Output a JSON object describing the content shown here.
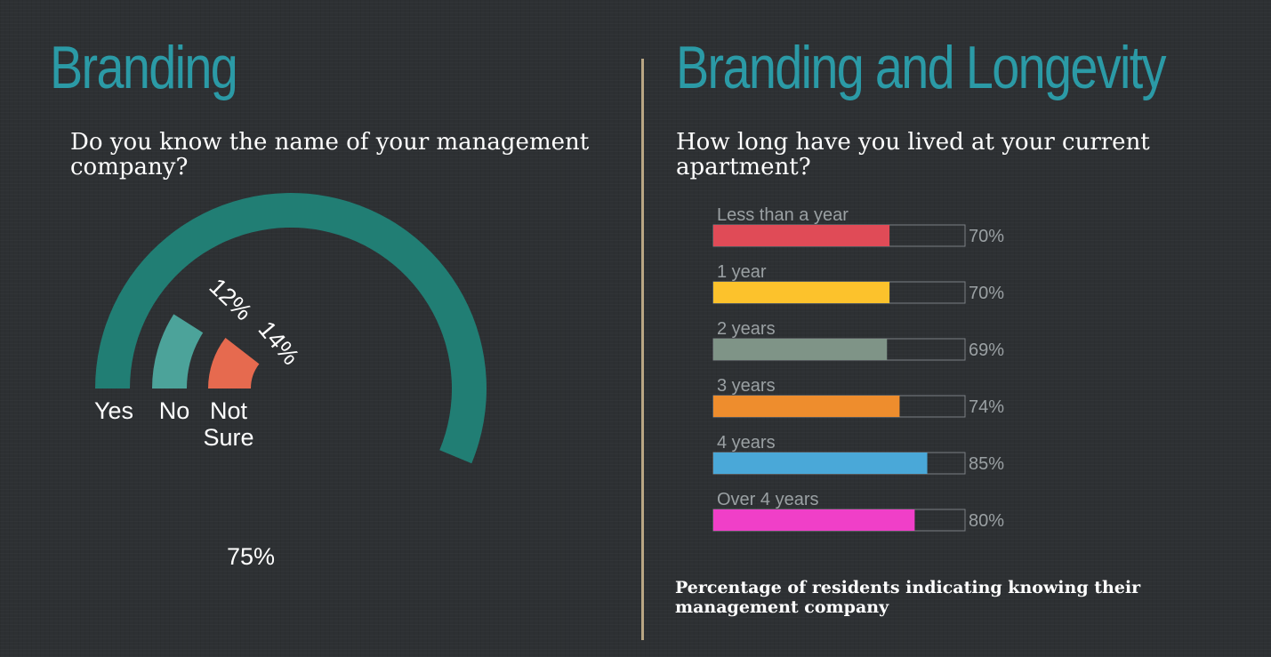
{
  "left_panel": {
    "title": "Branding",
    "question": "Do you know the name of your management company?"
  },
  "right_panel": {
    "title": "Branding and Longevity",
    "question": "How long have you lived at your current apartment?",
    "footnote": "Percentage of residents indicating knowing their management company"
  },
  "chart_data": [
    {
      "type": "radial-bar",
      "categories": [
        "Yes",
        "No",
        "Not Sure"
      ],
      "category_labels": [
        "Yes",
        "No",
        "Not\nSure"
      ],
      "values": [
        75,
        12,
        14
      ],
      "value_labels": [
        "75%",
        "12%",
        "14%"
      ],
      "colors": [
        "#217e74",
        "#4ca39a",
        "#e66a4f"
      ]
    },
    {
      "type": "bar",
      "orientation": "horizontal",
      "categories": [
        "Less than a year",
        "1 year",
        "2 years",
        "3 years",
        "4 years",
        "Over 4 years"
      ],
      "values": [
        70,
        70,
        69,
        74,
        85,
        80
      ],
      "value_labels": [
        "70%",
        "70%",
        "69%",
        "74%",
        "85%",
        "80%"
      ],
      "xlim": [
        0,
        100
      ],
      "colors": [
        "#e04b57",
        "#fcc22c",
        "#7f9487",
        "#ee8d2d",
        "#4aa8d8",
        "#f03fc8"
      ]
    }
  ]
}
